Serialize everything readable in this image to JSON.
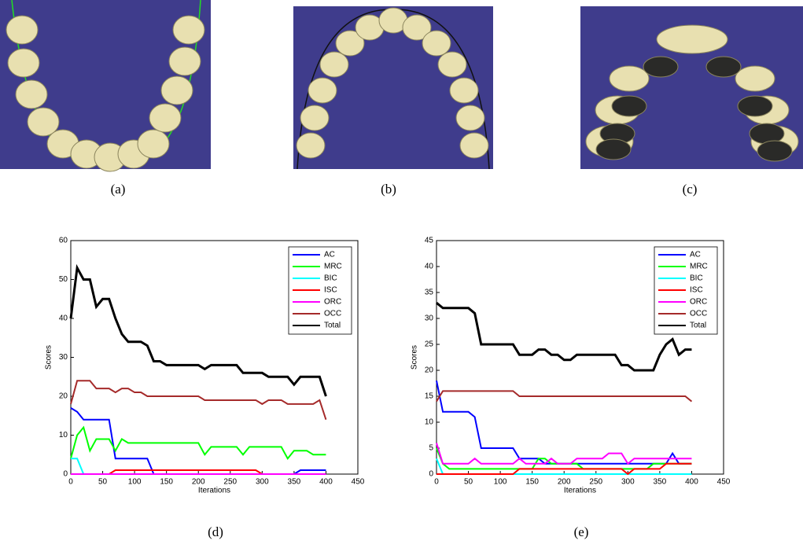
{
  "captions": [
    "(a)",
    "(b)",
    "(c)",
    "(d)",
    "(e)"
  ],
  "chart_data": [
    {
      "type": "line",
      "xlabel": "Iterations",
      "ylabel": "Scores",
      "legend": "upper right",
      "xlim": [
        0,
        450
      ],
      "ylim": [
        0,
        60
      ],
      "xticks": [
        0,
        50,
        100,
        150,
        200,
        250,
        300,
        350,
        400,
        450
      ],
      "yticks": [
        0,
        10,
        20,
        30,
        40,
        50,
        60
      ],
      "x": [
        0,
        10,
        20,
        30,
        40,
        50,
        60,
        70,
        80,
        90,
        100,
        110,
        120,
        130,
        140,
        150,
        160,
        170,
        180,
        190,
        200,
        210,
        220,
        230,
        240,
        250,
        260,
        270,
        280,
        290,
        300,
        310,
        320,
        330,
        340,
        350,
        360,
        370,
        380,
        390,
        400
      ],
      "series": [
        {
          "name": "AC",
          "color": "#0000ff",
          "values": [
            17,
            16,
            14,
            14,
            14,
            14,
            14,
            4,
            4,
            4,
            4,
            4,
            4,
            0,
            0,
            0,
            0,
            0,
            0,
            0,
            0,
            0,
            0,
            0,
            0,
            0,
            0,
            0,
            0,
            0,
            0,
            0,
            0,
            0,
            0,
            0,
            1,
            1,
            1,
            1,
            1
          ]
        },
        {
          "name": "MRC",
          "color": "#00ff00",
          "values": [
            4,
            10,
            12,
            6,
            9,
            9,
            9,
            6,
            9,
            8,
            8,
            8,
            8,
            8,
            8,
            8,
            8,
            8,
            8,
            8,
            8,
            5,
            7,
            7,
            7,
            7,
            7,
            5,
            7,
            7,
            7,
            7,
            7,
            7,
            4,
            6,
            6,
            6,
            5,
            5,
            5
          ]
        },
        {
          "name": "BIC",
          "color": "#00ffff",
          "values": [
            4,
            4,
            0,
            0,
            0,
            0,
            0,
            0,
            0,
            0,
            0,
            0,
            0,
            0,
            0,
            0,
            0,
            0,
            0,
            0,
            0,
            0,
            0,
            0,
            0,
            0,
            0,
            0,
            0,
            0,
            0,
            0,
            0,
            0,
            0,
            0,
            0,
            0,
            0,
            0,
            0
          ]
        },
        {
          "name": "ISC",
          "color": "#ff0000",
          "values": [
            0,
            0,
            0,
            0,
            0,
            0,
            0,
            1,
            1,
            1,
            1,
            1,
            1,
            1,
            1,
            1,
            1,
            1,
            1,
            1,
            1,
            1,
            1,
            1,
            1,
            1,
            1,
            1,
            1,
            1,
            0,
            0,
            0,
            0,
            0,
            0,
            0,
            0,
            0,
            0,
            0
          ]
        },
        {
          "name": "ORC",
          "color": "#ff00ff",
          "values": [
            0,
            0,
            0,
            0,
            0,
            0,
            0,
            0,
            0,
            0,
            0,
            0,
            0,
            0,
            0,
            0,
            0,
            0,
            0,
            0,
            0,
            0,
            0,
            0,
            0,
            0,
            0,
            0,
            0,
            0,
            0,
            0,
            0,
            0,
            0,
            0,
            0,
            0,
            0,
            0,
            0
          ]
        },
        {
          "name": "OCC",
          "color": "#a52a2a",
          "values": [
            18,
            24,
            24,
            24,
            22,
            22,
            22,
            21,
            22,
            22,
            21,
            21,
            20,
            20,
            20,
            20,
            20,
            20,
            20,
            20,
            20,
            19,
            19,
            19,
            19,
            19,
            19,
            19,
            19,
            19,
            18,
            19,
            19,
            19,
            18,
            18,
            18,
            18,
            18,
            19,
            14
          ]
        },
        {
          "name": "Total",
          "color": "#000000",
          "values": [
            40,
            53,
            50,
            50,
            43,
            45,
            45,
            40,
            36,
            34,
            34,
            34,
            33,
            29,
            29,
            28,
            28,
            28,
            28,
            28,
            28,
            27,
            28,
            28,
            28,
            28,
            28,
            26,
            26,
            26,
            26,
            25,
            25,
            25,
            25,
            23,
            25,
            25,
            25,
            25,
            20
          ]
        }
      ]
    },
    {
      "type": "line",
      "xlabel": "Iterations",
      "ylabel": "Scores",
      "legend": "upper right",
      "xlim": [
        0,
        450
      ],
      "ylim": [
        0,
        45
      ],
      "xticks": [
        0,
        50,
        100,
        150,
        200,
        250,
        300,
        350,
        400,
        450
      ],
      "yticks": [
        0,
        5,
        10,
        15,
        20,
        25,
        30,
        35,
        40,
        45
      ],
      "x": [
        0,
        10,
        20,
        30,
        40,
        50,
        60,
        70,
        80,
        90,
        100,
        110,
        120,
        130,
        140,
        150,
        160,
        170,
        180,
        190,
        200,
        210,
        220,
        230,
        240,
        250,
        260,
        270,
        280,
        290,
        300,
        310,
        320,
        330,
        340,
        350,
        360,
        370,
        380,
        390,
        400
      ],
      "series": [
        {
          "name": "AC",
          "color": "#0000ff",
          "values": [
            18,
            12,
            12,
            12,
            12,
            12,
            11,
            5,
            5,
            5,
            5,
            5,
            5,
            3,
            3,
            3,
            3,
            2,
            2,
            2,
            2,
            2,
            2,
            2,
            2,
            2,
            2,
            2,
            2,
            2,
            2,
            2,
            2,
            2,
            2,
            2,
            2,
            4,
            2,
            2,
            2
          ]
        },
        {
          "name": "MRC",
          "color": "#00ff00",
          "values": [
            5,
            2,
            1,
            1,
            1,
            1,
            1,
            1,
            1,
            1,
            1,
            1,
            1,
            1,
            1,
            1,
            3,
            3,
            2,
            2,
            2,
            2,
            2,
            1,
            1,
            1,
            1,
            1,
            1,
            1,
            1,
            1,
            1,
            1,
            2,
            2,
            2,
            2,
            2,
            2,
            2
          ]
        },
        {
          "name": "BIC",
          "color": "#00ffff",
          "values": [
            3,
            0,
            0,
            0,
            0,
            0,
            0,
            0,
            0,
            0,
            0,
            0,
            0,
            0,
            0,
            0,
            0,
            0,
            0,
            0,
            0,
            0,
            0,
            0,
            0,
            0,
            0,
            0,
            0,
            0,
            0,
            0,
            0,
            0,
            0,
            0,
            0,
            0,
            0,
            0,
            0
          ]
        },
        {
          "name": "ISC",
          "color": "#ff0000",
          "values": [
            0,
            0,
            0,
            0,
            0,
            0,
            0,
            0,
            0,
            0,
            0,
            0,
            0,
            1,
            1,
            1,
            1,
            1,
            1,
            1,
            1,
            1,
            1,
            1,
            1,
            1,
            1,
            1,
            1,
            1,
            0,
            1,
            1,
            1,
            1,
            1,
            2,
            2,
            2,
            2,
            2
          ]
        },
        {
          "name": "ORC",
          "color": "#ff00ff",
          "values": [
            6,
            2,
            2,
            2,
            2,
            2,
            3,
            2,
            2,
            2,
            2,
            2,
            2,
            3,
            2,
            2,
            2,
            2,
            3,
            2,
            2,
            2,
            3,
            3,
            3,
            3,
            3,
            4,
            4,
            4,
            2,
            3,
            3,
            3,
            3,
            3,
            3,
            3,
            3,
            3,
            3
          ]
        },
        {
          "name": "OCC",
          "color": "#a52a2a",
          "values": [
            14,
            16,
            16,
            16,
            16,
            16,
            16,
            16,
            16,
            16,
            16,
            16,
            16,
            15,
            15,
            15,
            15,
            15,
            15,
            15,
            15,
            15,
            15,
            15,
            15,
            15,
            15,
            15,
            15,
            15,
            15,
            15,
            15,
            15,
            15,
            15,
            15,
            15,
            15,
            15,
            14
          ]
        },
        {
          "name": "Total",
          "color": "#000000",
          "values": [
            33,
            32,
            32,
            32,
            32,
            32,
            31,
            25,
            25,
            25,
            25,
            25,
            25,
            23,
            23,
            23,
            24,
            24,
            23,
            23,
            22,
            22,
            23,
            23,
            23,
            23,
            23,
            23,
            23,
            21,
            21,
            20,
            20,
            20,
            20,
            23,
            25,
            26,
            23,
            24,
            24
          ]
        }
      ]
    }
  ]
}
